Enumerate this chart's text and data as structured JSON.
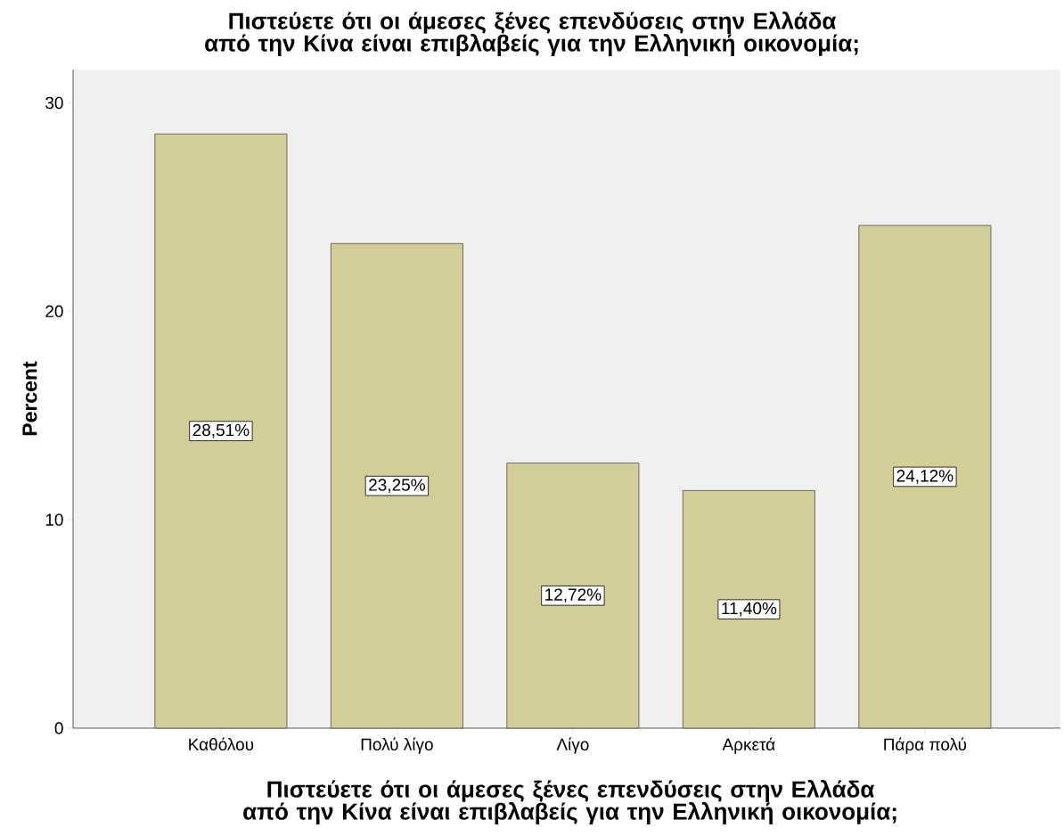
{
  "chart_data": {
    "type": "bar",
    "title": "Πιστεύετε ότι οι άμεσες ξένες επενδύσεις στην Ελλάδα από την Κίνα είναι επιβλαβείς για την Ελληνική οικονομία;",
    "xlabel": "Πιστεύετε ότι οι άμεσες ξένες επενδύσεις στην Ελλάδα από την Κίνα είναι επιβλαβείς για την Ελληνική οικονομία;",
    "ylabel": "Percent",
    "categories": [
      "Καθόλου",
      "Πολύ λίγο",
      "Λίγο",
      "Αρκετά",
      "Πάρα πολύ"
    ],
    "values": [
      28.51,
      23.25,
      12.72,
      11.4,
      24.12
    ],
    "value_labels": [
      "28,51%",
      "23,25%",
      "12,72%",
      "11,40%",
      "24,12%"
    ],
    "color": "#d3ce97",
    "ylim": [
      0,
      31.6
    ],
    "yticks": [
      0,
      10,
      20,
      30
    ],
    "grid": false
  }
}
